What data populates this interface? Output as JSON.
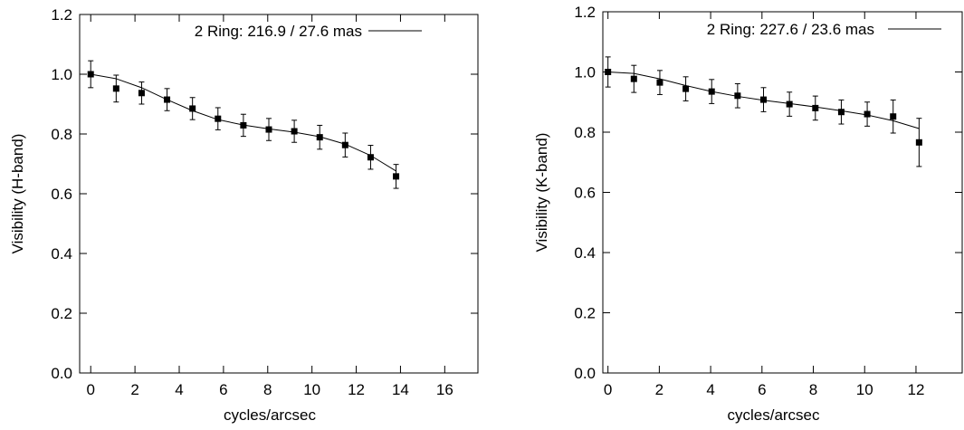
{
  "chart_data": [
    {
      "type": "scatter",
      "xlabel": "cycles/arcsec",
      "ylabel": "Visibility (H-band)",
      "xlim": [
        -0.5,
        17.5
      ],
      "ylim": [
        0.0,
        1.2
      ],
      "xticks": [
        "0",
        "2",
        "4",
        "6",
        "8",
        "10",
        "12",
        "14",
        "16"
      ],
      "xtick_values": [
        0,
        2,
        4,
        6,
        8,
        10,
        12,
        14,
        16
      ],
      "yticks": [
        "0.0",
        "0.2",
        "0.4",
        "0.6",
        "0.8",
        "1.0",
        "1.2"
      ],
      "ytick_values": [
        0.0,
        0.2,
        0.4,
        0.6,
        0.8,
        1.0,
        1.2
      ],
      "legend": {
        "label": "2 Ring: 216.9 / 27.6 mas",
        "placement": "top-right"
      },
      "observed": {
        "x": [
          0,
          1.15,
          2.3,
          3.45,
          4.6,
          5.75,
          6.9,
          8.05,
          9.2,
          10.35,
          11.5,
          12.65,
          13.8
        ],
        "y": [
          1.0,
          0.952,
          0.937,
          0.915,
          0.885,
          0.851,
          0.829,
          0.815,
          0.809,
          0.789,
          0.763,
          0.722,
          0.658
        ],
        "err": [
          0.045,
          0.045,
          0.037,
          0.037,
          0.037,
          0.037,
          0.037,
          0.037,
          0.037,
          0.04,
          0.04,
          0.04,
          0.04
        ]
      },
      "model": {
        "x": [
          0,
          1.15,
          2.3,
          3.45,
          4.6,
          5.75,
          6.9,
          8.05,
          9.2,
          10.35,
          11.5,
          12.65,
          13.8
        ],
        "y": [
          1.0,
          0.985,
          0.955,
          0.915,
          0.878,
          0.848,
          0.83,
          0.817,
          0.806,
          0.791,
          0.766,
          0.728,
          0.676
        ]
      }
    },
    {
      "type": "scatter",
      "xlabel": "cycles/arcsec",
      "ylabel": "Visibility (K-band)",
      "xlim": [
        -0.2,
        13.8
      ],
      "ylim": [
        0.0,
        1.2
      ],
      "xticks": [
        "0",
        "2",
        "4",
        "6",
        "8",
        "10",
        "12"
      ],
      "xtick_values": [
        0,
        2,
        4,
        6,
        8,
        10,
        12
      ],
      "yticks": [
        "0.0",
        "0.2",
        "0.4",
        "0.6",
        "0.8",
        "1.0",
        "1.2"
      ],
      "ytick_values": [
        0.0,
        0.2,
        0.4,
        0.6,
        0.8,
        1.0,
        1.2
      ],
      "legend": {
        "label": "2 Ring: 227.6 / 23.6 mas",
        "placement": "top-right"
      },
      "observed": {
        "x": [
          0,
          1.01,
          2.02,
          3.03,
          4.04,
          5.05,
          6.06,
          7.07,
          8.08,
          9.09,
          10.1,
          11.11,
          12.12
        ],
        "y": [
          1.0,
          0.977,
          0.965,
          0.944,
          0.935,
          0.921,
          0.908,
          0.893,
          0.88,
          0.867,
          0.86,
          0.852,
          0.766
        ],
        "err": [
          0.05,
          0.045,
          0.04,
          0.04,
          0.04,
          0.04,
          0.04,
          0.04,
          0.04,
          0.04,
          0.04,
          0.055,
          0.08
        ]
      },
      "model": {
        "x": [
          0,
          1.01,
          2.02,
          3.03,
          4.04,
          5.05,
          6.06,
          7.07,
          8.08,
          9.09,
          10.1,
          11.11,
          12.12
        ],
        "y": [
          1.0,
          0.995,
          0.977,
          0.955,
          0.935,
          0.919,
          0.906,
          0.895,
          0.884,
          0.871,
          0.857,
          0.838,
          0.812
        ]
      }
    }
  ]
}
